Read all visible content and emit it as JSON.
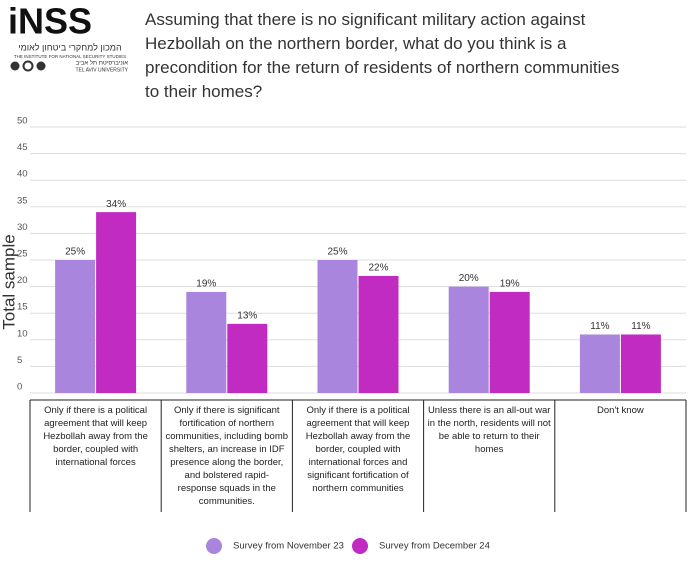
{
  "logo": {
    "name": "iNSS",
    "hebrew": "המכון למחקרי ביטחון לאומי",
    "english": "THE INSTITUTE FOR NATIONAL SECURITY STUDIES",
    "university_hebrew": "אוניברסיטת תל אביב",
    "university": "TEL AVIV UNIVERSITY"
  },
  "chart_data": {
    "type": "bar",
    "title": "Assuming that there is no significant military action against Hezbollah on the northern border, what do you think is a precondition for the return of residents of northern communities to their homes?",
    "ylabel": "Total sample",
    "categories": [
      "Only if there is a political agreement that will keep Hezbollah away from the border, coupled with international forces",
      "Only if there is significant fortification of northern communities, including bomb shelters, an increase in IDF presence along the border, and bolstered rapid-response squads in the communities.",
      "Only if there is a political agreement that will keep Hezbollah away from the border, coupled with international forces and significant fortification of northern communities",
      "Unless there is an all-out war in the north, residents will not be able to return to their homes",
      "Don't know"
    ],
    "series": [
      {
        "name": "Survey from November 23",
        "color": "#a985dd",
        "values": [
          25,
          19,
          25,
          20,
          11
        ],
        "value_labels": [
          "25%",
          "19%",
          "25%",
          "20%",
          "11%"
        ]
      },
      {
        "name": "Survey from December 24",
        "color": "#c12bc1",
        "values": [
          34,
          13,
          22,
          19,
          11
        ],
        "value_labels": [
          "34%",
          "13%",
          "22%",
          "19%",
          "11%"
        ]
      }
    ],
    "ylim": [
      0,
      50
    ],
    "yticks": [
      0,
      5,
      10,
      15,
      20,
      25,
      30,
      35,
      40,
      45,
      50
    ],
    "grid": true,
    "legend": "bottom"
  }
}
